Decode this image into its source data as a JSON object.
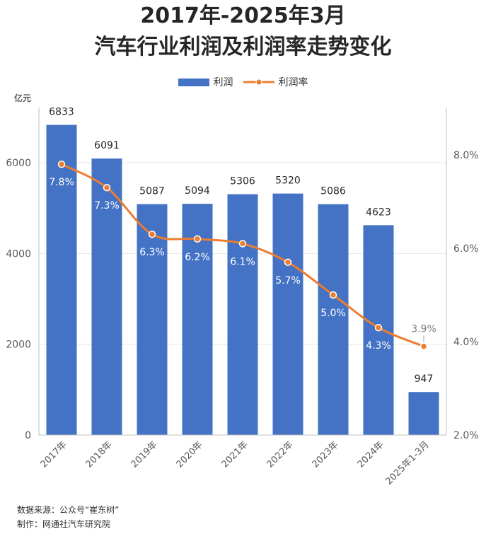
{
  "title_line1": "2017年-2025年3月",
  "title_line2": "汽车行业利润及利润率走势变化",
  "legend": {
    "bar_label": "利润",
    "line_label": "利润率"
  },
  "unit_label": "亿元",
  "footer": {
    "source": "数据来源：公众号“崔东树”",
    "maker": "制作：网通社汽车研究院"
  },
  "colors": {
    "bar": "#4472C4",
    "line": "#ED7D31",
    "grid": "#E6E6E6",
    "axis_text": "#595959"
  },
  "chart_data": {
    "type": "bar",
    "title": "2017年-2025年3月 汽车行业利润及利润率走势变化",
    "categories": [
      "2017年",
      "2018年",
      "2019年",
      "2020年",
      "2021年",
      "2022年",
      "2023年",
      "2024年",
      "2025年1-3月"
    ],
    "series": [
      {
        "name": "利润",
        "type": "bar",
        "axis": "left",
        "values": [
          6833,
          6091,
          5087,
          5094,
          5306,
          5320,
          5086,
          4623,
          947
        ]
      },
      {
        "name": "利润率",
        "type": "line",
        "axis": "right",
        "values": [
          7.8,
          7.3,
          6.3,
          6.2,
          6.1,
          5.7,
          5.0,
          4.3,
          3.9
        ],
        "labels": [
          "7.8%",
          "7.3%",
          "6.3%",
          "6.2%",
          "6.1%",
          "5.7%",
          "5.0%",
          "4.3%",
          "3.9%"
        ]
      }
    ],
    "y_left": {
      "label": "亿元",
      "min": 0,
      "max": 7000,
      "ticks": [
        0,
        2000,
        4000,
        6000
      ]
    },
    "y_right": {
      "min": 2.0,
      "max": 8.8,
      "ticks": [
        2.0,
        4.0,
        6.0,
        8.0
      ],
      "tick_labels": [
        "2.0%",
        "4.0%",
        "6.0%",
        "8.0%"
      ]
    },
    "grid": true,
    "legend_position": "top"
  }
}
